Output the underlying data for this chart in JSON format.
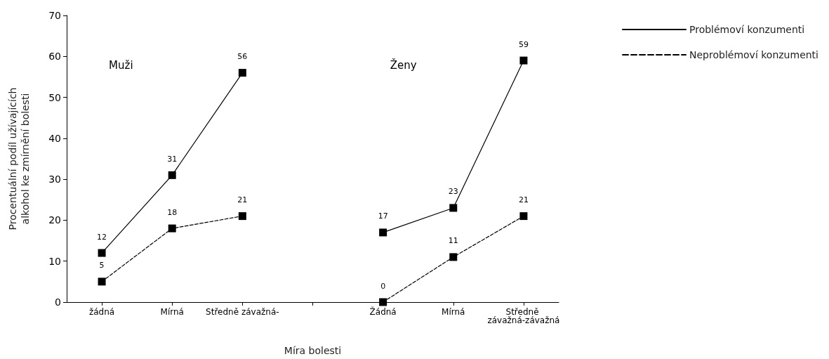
{
  "chart_data": {
    "type": "line",
    "xlabel": "Míra bolesti",
    "ylabel": "Procentuální podíl užívajících alkohol ke zmírnění bolesti",
    "categories": [
      "žádná",
      "Mírná",
      "Středně závažná-",
      null,
      "Žádná",
      "Mírná",
      "Středně závažná-závažná"
    ],
    "series": [
      {
        "name": "Problémoví konzumenti",
        "color": "#000000",
        "line_style": "solid",
        "values": [
          12,
          31,
          56,
          null,
          17,
          23,
          59
        ]
      },
      {
        "name": "Neproblémoví konzumenti",
        "color": "#000000",
        "line_style": "dashed",
        "values": [
          5,
          18,
          21,
          null,
          0,
          11,
          21
        ]
      }
    ],
    "ylim": [
      0,
      70
    ],
    "yticks": [
      0,
      10,
      20,
      30,
      40,
      50,
      60,
      70
    ],
    "grid": false,
    "legend": "top right",
    "marker": "square",
    "data_labels": true,
    "annotations": [
      "Muži",
      "Ženy"
    ]
  }
}
